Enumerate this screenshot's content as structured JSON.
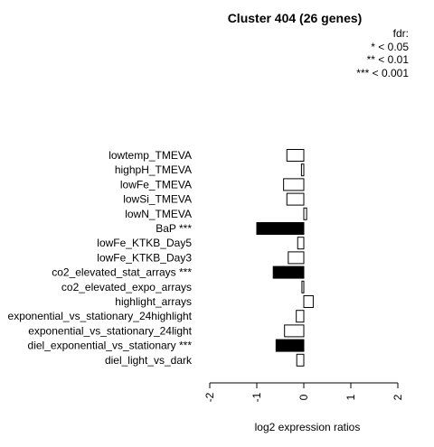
{
  "chart_data": {
    "type": "bar",
    "orientation": "horizontal",
    "title": "Cluster 404 (26 genes)",
    "xlabel": "log2 expression ratios",
    "ylabel": "",
    "xlim": [
      -2,
      2
    ],
    "xticks": [
      "-2",
      "-1",
      "0",
      "1",
      "2"
    ],
    "legend": {
      "title": "fdr:",
      "entries": [
        "* < 0.05",
        "** < 0.01",
        "*** < 0.001"
      ],
      "placement": "top-right"
    },
    "categories": [
      "lowtemp_TMEVA",
      "highpH_TMEVA",
      "lowFe_TMEVA",
      "lowSi_TMEVA",
      "lowN_TMEVA",
      "BaP ***",
      "lowFe_KTKB_Day5",
      "lowFe_KTKB_Day3",
      "co2_elevated_stat_arrays ***",
      "co2_elevated_expo_arrays",
      "highlight_arrays",
      "exponential_vs_stationary_24highlight",
      "exponential_vs_stationary_24light",
      "diel_exponential_vs_stationary ***",
      "diel_light_vs_dark"
    ],
    "values": [
      -0.36,
      -0.05,
      -0.43,
      -0.36,
      0.06,
      -1.0,
      -0.13,
      -0.33,
      -0.65,
      -0.04,
      0.2,
      -0.16,
      -0.41,
      -0.59,
      -0.15
    ],
    "significant": [
      false,
      false,
      false,
      false,
      false,
      true,
      false,
      false,
      true,
      false,
      false,
      false,
      false,
      true,
      false
    ],
    "colors": {
      "significant": "#000000",
      "normal": "#ffffff",
      "stroke": "#000000"
    }
  }
}
